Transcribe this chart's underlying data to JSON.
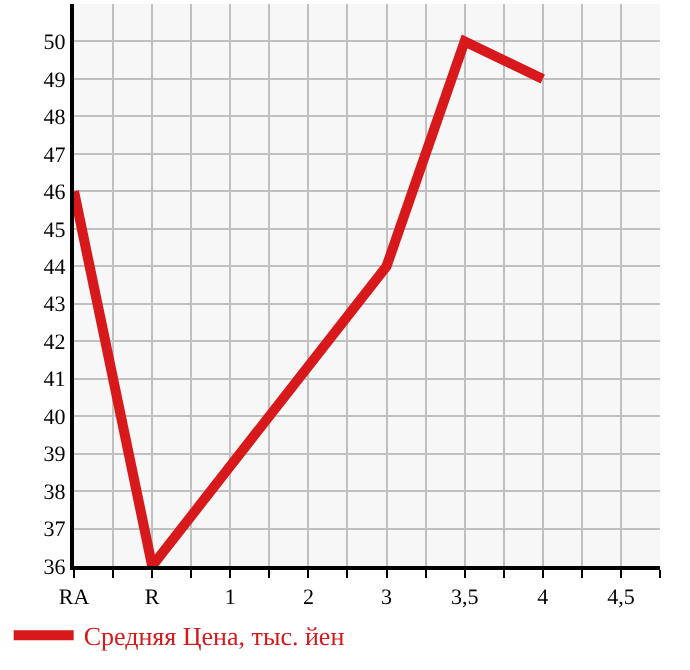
{
  "chart_data": {
    "type": "line",
    "categories": [
      "RA",
      "R",
      "1",
      "2",
      "3",
      "3,5",
      "4",
      "4,5"
    ],
    "series": [
      {
        "name": "Средняя Цена, тыс. йен",
        "color": "#d7191c",
        "values": [
          46,
          36,
          null,
          null,
          44,
          50,
          49,
          null
        ]
      }
    ],
    "ylim": [
      36,
      51
    ],
    "yticks": [
      36,
      37,
      38,
      39,
      40,
      41,
      42,
      43,
      44,
      45,
      46,
      47,
      48,
      49,
      50
    ],
    "grid": true,
    "legend": "bottom left",
    "marker": "none",
    "line_style": "solid"
  }
}
